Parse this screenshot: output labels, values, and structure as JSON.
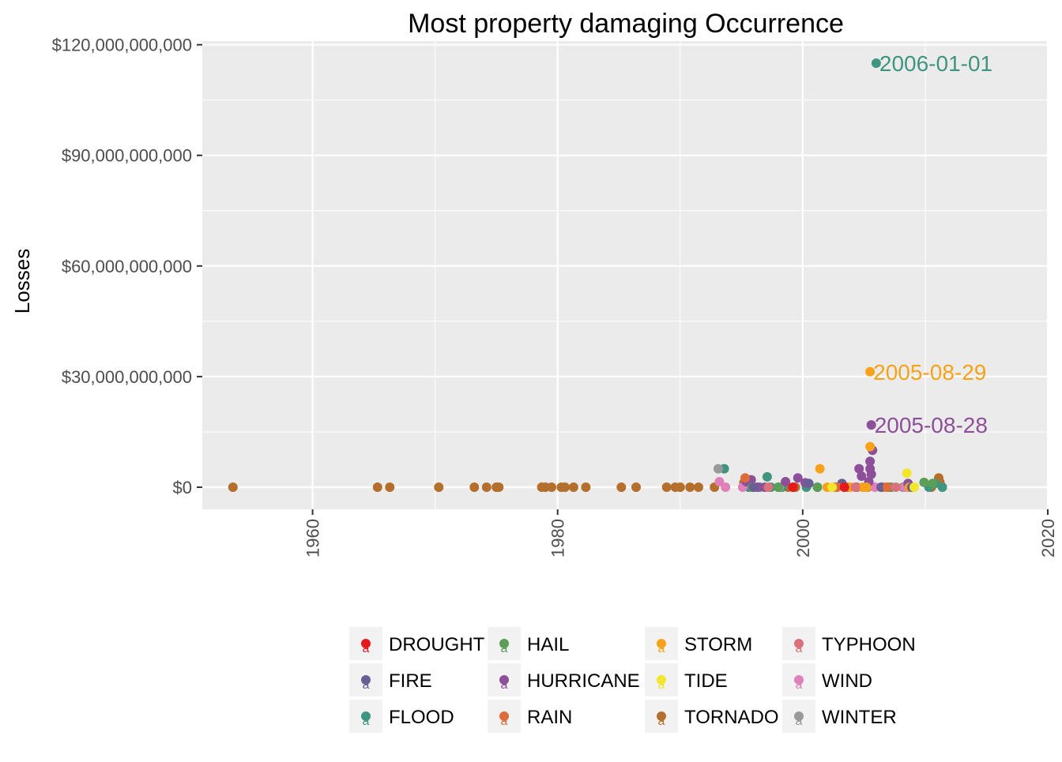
{
  "chart_data": {
    "type": "scatter",
    "title": "Most property damaging Occurrence",
    "xlabel": "",
    "ylabel": "Losses",
    "xlim": [
      1951,
      2020
    ],
    "ylim": [
      -6000000000,
      121000000000
    ],
    "x_ticks": [
      {
        "value": 1960,
        "label": "1960"
      },
      {
        "value": 1980,
        "label": "1980"
      },
      {
        "value": 2000,
        "label": "2000"
      },
      {
        "value": 2020,
        "label": "2020"
      }
    ],
    "y_ticks": [
      {
        "value": 0,
        "label": "$0"
      },
      {
        "value": 30000000000,
        "label": "$30,000,000,000"
      },
      {
        "value": 60000000000,
        "label": "$60,000,000,000"
      },
      {
        "value": 90000000000,
        "label": "$90,000,000,000"
      },
      {
        "value": 120000000000,
        "label": "$120,000,000,000"
      }
    ],
    "grid": true,
    "legend_position": "bottom",
    "legend_glyph": "a",
    "colors": {
      "DROUGHT": "#e41a1c",
      "FIRE": "#6a5f95",
      "FLOOD": "#3f9580",
      "HAIL": "#5a9e57",
      "HURRICANE": "#8e4f9a",
      "RAIN": "#dd6b3b",
      "STORM": "#f8a21a",
      "TIDE": "#f2e62c",
      "TORNADO": "#b56f2c",
      "TYPHOON": "#d9727a",
      "WIND": "#df80b9",
      "WINTER": "#999999"
    },
    "legend": [
      [
        "DROUGHT",
        "FIRE",
        "FLOOD"
      ],
      [
        "HAIL",
        "HURRICANE",
        "RAIN"
      ],
      [
        "STORM",
        "TIDE",
        "TORNADO"
      ],
      [
        "TYPHOON",
        "WIND",
        "WINTER"
      ]
    ],
    "series": [
      {
        "name": "TORNADO",
        "points": [
          [
            1953.5,
            0
          ],
          [
            1965.3,
            0
          ],
          [
            1966.3,
            0
          ],
          [
            1970.3,
            0
          ],
          [
            1973.2,
            0
          ],
          [
            1974.2,
            0
          ],
          [
            1975.0,
            0
          ],
          [
            1975.2,
            0
          ],
          [
            1978.7,
            0
          ],
          [
            1979.0,
            0
          ],
          [
            1979.5,
            0
          ],
          [
            1980.3,
            0
          ],
          [
            1980.6,
            0
          ],
          [
            1981.3,
            0
          ],
          [
            1982.3,
            0
          ],
          [
            1985.2,
            0
          ],
          [
            1986.4,
            0
          ],
          [
            1988.9,
            0
          ],
          [
            1989.6,
            0
          ],
          [
            1990.0,
            0
          ],
          [
            1990.8,
            0
          ],
          [
            1991.5,
            0
          ],
          [
            1992.8,
            0
          ],
          [
            1995.2,
            1200000000
          ],
          [
            1998.8,
            0
          ],
          [
            1999.4,
            0
          ],
          [
            2003.7,
            0
          ],
          [
            2005.3,
            0
          ],
          [
            2006.6,
            0
          ],
          [
            2008.6,
            0
          ],
          [
            2010.5,
            0
          ],
          [
            2011.1,
            2500000000
          ],
          [
            2011.2,
            1300000000
          ]
        ]
      },
      {
        "name": "FLOOD",
        "points": [
          [
            1993.6,
            5000000000
          ],
          [
            1995.6,
            0
          ],
          [
            1996.5,
            0
          ],
          [
            1997.1,
            2800000000
          ],
          [
            1997.4,
            0
          ],
          [
            1998.3,
            0
          ],
          [
            2000.3,
            0
          ],
          [
            2001.2,
            0
          ],
          [
            2006.0,
            115000000000
          ],
          [
            2007.2,
            0
          ],
          [
            2008.2,
            0
          ],
          [
            2010.3,
            0
          ],
          [
            2010.8,
            1000000000
          ],
          [
            2011.4,
            0
          ]
        ]
      },
      {
        "name": "WINTER",
        "points": [
          [
            1993.1,
            5000000000
          ],
          [
            1998.1,
            0
          ]
        ]
      },
      {
        "name": "WIND",
        "points": [
          [
            1993.2,
            1500000000
          ],
          [
            1993.7,
            0
          ],
          [
            1995.1,
            0
          ],
          [
            2005.1,
            0
          ],
          [
            2005.9,
            0
          ],
          [
            2006.5,
            0
          ],
          [
            2008.3,
            0
          ]
        ]
      },
      {
        "name": "HURRICANE",
        "points": [
          [
            1995.4,
            1500000000
          ],
          [
            1995.8,
            2000000000
          ],
          [
            1996.3,
            0
          ],
          [
            1996.9,
            0
          ],
          [
            1998.6,
            1500000000
          ],
          [
            1999.6,
            2500000000
          ],
          [
            2000.2,
            1200000000
          ],
          [
            2002.6,
            0
          ],
          [
            2004.4,
            0
          ],
          [
            2004.6,
            5000000000
          ],
          [
            2004.8,
            3000000000
          ],
          [
            2005.6,
            16900000000
          ],
          [
            2005.7,
            10000000000
          ],
          [
            2005.5,
            7000000000
          ],
          [
            2005.5,
            5000000000
          ],
          [
            2005.6,
            3500000000
          ],
          [
            2005.4,
            1500000000
          ],
          [
            2008.6,
            1000000000
          ]
        ]
      },
      {
        "name": "STORM",
        "points": [
          [
            2001.4,
            5000000000
          ],
          [
            2002.0,
            0
          ],
          [
            2003.9,
            0
          ],
          [
            2004.9,
            0
          ],
          [
            2005.2,
            0
          ],
          [
            2005.5,
            11000000000
          ],
          [
            2005.5,
            31300000000
          ],
          [
            2006.7,
            0
          ],
          [
            2008.7,
            0
          ]
        ]
      },
      {
        "name": "HAIL",
        "points": [
          [
            1995.9,
            0
          ],
          [
            1998.0,
            0
          ],
          [
            2001.2,
            0
          ],
          [
            2007.1,
            0
          ],
          [
            2009.9,
            1300000000
          ],
          [
            2010.6,
            1000000000
          ]
        ]
      },
      {
        "name": "FIRE",
        "points": [
          [
            1996.0,
            0
          ],
          [
            2000.5,
            1000000000
          ],
          [
            2003.2,
            1000000000
          ],
          [
            2006.4,
            0
          ],
          [
            2008.9,
            0
          ]
        ]
      },
      {
        "name": "RAIN",
        "points": [
          [
            1995.3,
            2500000000
          ],
          [
            2002.8,
            0
          ],
          [
            2006.9,
            0
          ]
        ]
      },
      {
        "name": "TIDE",
        "points": [
          [
            2002.4,
            0
          ],
          [
            2008.5,
            3800000000
          ],
          [
            2009.1,
            0
          ]
        ]
      },
      {
        "name": "TYPHOON",
        "points": [
          [
            1997.2,
            0
          ],
          [
            2004.3,
            0
          ],
          [
            2007.6,
            0
          ]
        ]
      },
      {
        "name": "DROUGHT",
        "points": [
          [
            1999.2,
            0
          ],
          [
            2003.4,
            0
          ]
        ]
      }
    ],
    "annotations": [
      {
        "x": 2006.0,
        "y": 115000000000,
        "text": "2006-01-01",
        "series": "FLOOD"
      },
      {
        "x": 2005.5,
        "y": 31300000000,
        "text": "2005-08-29",
        "series": "STORM"
      },
      {
        "x": 2005.6,
        "y": 16900000000,
        "text": "2005-08-28",
        "series": "HURRICANE"
      }
    ]
  }
}
